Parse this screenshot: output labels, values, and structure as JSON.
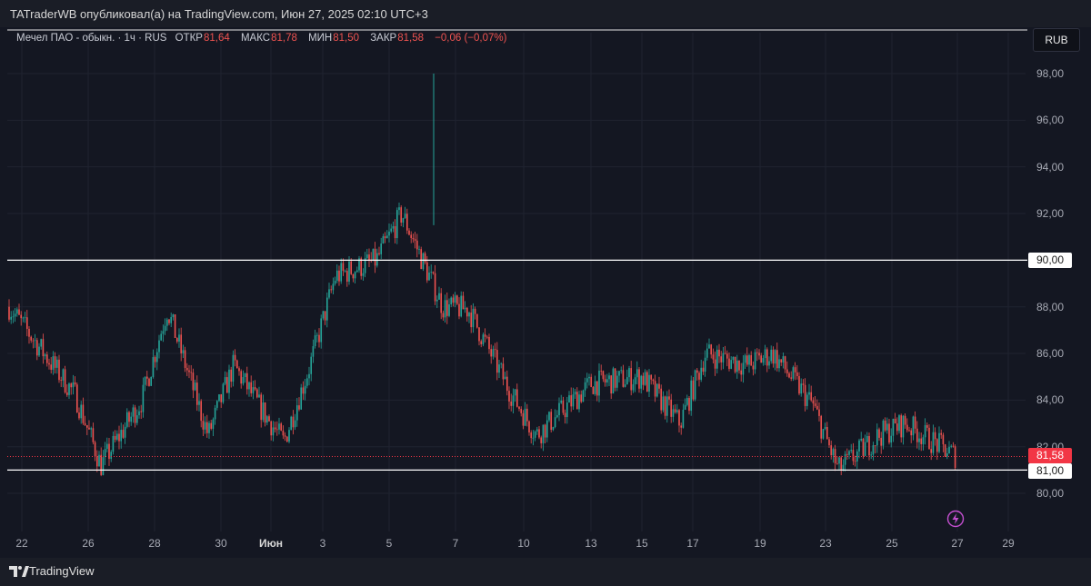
{
  "header": {
    "published": "TATraderWB опубликовал(а) на TradingView.com, Июн 27, 2025 02:10 UTC+3"
  },
  "legend": {
    "symbol": "Мечел ПАО - обыкн. · 1ч · RUS",
    "open_label": "ОТКР",
    "open_value": "81,64",
    "high_label": "МАКС",
    "high_value": "81,78",
    "low_label": "МИН",
    "low_value": "81,50",
    "close_label": "ЗАКР",
    "close_value": "81,58",
    "change": "−0,06 (−0,07%)"
  },
  "currency_button": "RUB",
  "price_axis": [
    "98,00",
    "96,00",
    "94,00",
    "92,00",
    "90,00",
    "88,00",
    "86,00",
    "84,00",
    "82,00",
    "80,00"
  ],
  "price_tags": {
    "last": "81,58",
    "level_low": "81,00",
    "level_high": "90,00"
  },
  "time_axis": [
    "22",
    "26",
    "28",
    "30",
    "Июн",
    "3",
    "5",
    "7",
    "10",
    "13",
    "15",
    "17",
    "19",
    "23",
    "25",
    "27",
    "29"
  ],
  "footer": {
    "brand": "TradingView"
  },
  "colors": {
    "up": "#26a69a",
    "down": "#ef5350",
    "background": "#141722",
    "level_line": "#ffffff",
    "last_price": "#f23645"
  },
  "chart_data": {
    "type": "candlestick",
    "title": "Мечел ПАО - обыкн. · 1ч · RUS",
    "ylim": [
      79.0,
      98.5
    ],
    "horizontal_levels": [
      90.0,
      81.0
    ],
    "last_price": 81.58,
    "x_ticks": [
      "22",
      "26",
      "28",
      "30",
      "Июн",
      "3",
      "5",
      "7",
      "10",
      "13",
      "15",
      "17",
      "19",
      "23",
      "25",
      "27",
      "29"
    ],
    "y_ticks": [
      80,
      82,
      84,
      86,
      88,
      90,
      92,
      94,
      96,
      98
    ],
    "close_path_approx": [
      {
        "x": "22",
        "y": 88.0
      },
      {
        "x": "26",
        "y": 84.2
      },
      {
        "x": "26",
        "y": 81.2
      },
      {
        "x": "28",
        "y": 84.0
      },
      {
        "x": "28",
        "y": 87.9
      },
      {
        "x": "30",
        "y": 82.5
      },
      {
        "x": "30",
        "y": 85.5
      },
      {
        "x": "Июн",
        "y": 83.8
      },
      {
        "x": "Июн",
        "y": 82.2
      },
      {
        "x": "3",
        "y": 85.5
      },
      {
        "x": "3",
        "y": 89.3
      },
      {
        "x": "5",
        "y": 90.0
      },
      {
        "x": "5",
        "y": 92.0
      },
      {
        "x": "7",
        "y": 88.0
      },
      {
        "x": "7",
        "y": 87.9
      },
      {
        "x": "10",
        "y": 84.3
      },
      {
        "x": "10",
        "y": 82.5
      },
      {
        "x": "13",
        "y": 84.7
      },
      {
        "x": "15",
        "y": 85.0
      },
      {
        "x": "17",
        "y": 83.0
      },
      {
        "x": "17",
        "y": 86.0
      },
      {
        "x": "19",
        "y": 85.5
      },
      {
        "x": "19",
        "y": 86.0
      },
      {
        "x": "23",
        "y": 83.8
      },
      {
        "x": "23",
        "y": 81.0
      },
      {
        "x": "25",
        "y": 82.5
      },
      {
        "x": "25",
        "y": 83.0
      },
      {
        "x": "27",
        "y": 81.58
      }
    ],
    "spike_high": 98.0
  }
}
